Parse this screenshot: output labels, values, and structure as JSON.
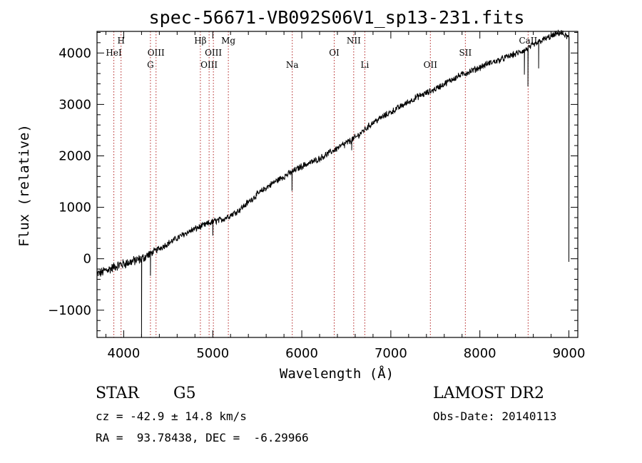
{
  "chart_data": {
    "type": "line",
    "title": "spec-56671-VB092S06V1_sp13-231.fits",
    "xlabel": "Wavelength (Å)",
    "ylabel": "Flux (relative)",
    "xlim": [
      3700,
      9100
    ],
    "ylim": [
      -1530,
      4420
    ],
    "x_ticks": [
      4000,
      5000,
      6000,
      7000,
      8000,
      9000
    ],
    "y_ticks": [
      -1000,
      0,
      1000,
      2000,
      3000,
      4000
    ],
    "grid": false,
    "line_color": "#000000",
    "marker_color": "#b22222",
    "series": [
      {
        "x": [
          3700,
          3750,
          3800,
          3850,
          3900,
          3950,
          4000,
          4100,
          4200,
          4300,
          4400,
          4500,
          4600,
          4700,
          4800,
          4900,
          5000,
          5100,
          5200,
          5300,
          5400,
          5500,
          5600,
          5700,
          5800,
          5900,
          6000,
          6100,
          6200,
          6300,
          6400,
          6500,
          6600,
          6700,
          6800,
          6900,
          7000,
          7100,
          7200,
          7300,
          7400,
          7500,
          7600,
          7700,
          7800,
          7900,
          8000,
          8100,
          8200,
          8300,
          8400,
          8500,
          8600,
          8700,
          8800,
          8900,
          9000
        ],
        "y": [
          -300,
          -270,
          -220,
          -200,
          -150,
          -120,
          -100,
          -50,
          0,
          100,
          200,
          300,
          400,
          500,
          580,
          650,
          720,
          760,
          850,
          950,
          1100,
          1250,
          1380,
          1500,
          1600,
          1700,
          1800,
          1870,
          1950,
          2050,
          2150,
          2250,
          2350,
          2500,
          2650,
          2750,
          2850,
          2950,
          3050,
          3150,
          3220,
          3300,
          3400,
          3500,
          3580,
          3650,
          3720,
          3800,
          3850,
          3920,
          3980,
          4050,
          4150,
          4250,
          4320,
          4400,
          4300
        ],
        "absorption": [
          {
            "x": 4200,
            "y": -1530
          },
          {
            "x": 4300,
            "y": -330
          },
          {
            "x": 5000,
            "y": 450
          },
          {
            "x": 5890,
            "y": 1320
          },
          {
            "x": 6480,
            "y": 2150
          },
          {
            "x": 6560,
            "y": 2110
          },
          {
            "x": 7850,
            "y": 3550
          },
          {
            "x": 8500,
            "y": 3580
          },
          {
            "x": 8540,
            "y": 3350
          },
          {
            "x": 8660,
            "y": 3700
          },
          {
            "x": 9000,
            "y": -60
          }
        ]
      }
    ],
    "lines": [
      {
        "x": 3889,
        "label": "HeI",
        "row": 1
      },
      {
        "x": 3970,
        "label": "H",
        "row": 0
      },
      {
        "x": 4300,
        "label": "G",
        "row": 2
      },
      {
        "x": 4363,
        "label": "OIII",
        "row": 1
      },
      {
        "x": 4861,
        "label": "Hβ",
        "row": 0
      },
      {
        "x": 4959,
        "label": "OIII",
        "row": 2
      },
      {
        "x": 5007,
        "label": "OIII",
        "row": 1
      },
      {
        "x": 5175,
        "label": "Mg",
        "row": 0
      },
      {
        "x": 5893,
        "label": "Na",
        "row": 2
      },
      {
        "x": 6364,
        "label": "OI",
        "row": 1
      },
      {
        "x": 6583,
        "label": "NII",
        "row": 0
      },
      {
        "x": 6708,
        "label": "Li",
        "row": 2
      },
      {
        "x": 7444,
        "label": "OII",
        "row": 2
      },
      {
        "x": 7837,
        "label": "SII",
        "row": 1
      },
      {
        "x": 8542,
        "label": "CaII",
        "row": 0
      }
    ]
  },
  "info": {
    "object_class": "STAR",
    "subclass": "G5",
    "survey": "LAMOST DR2",
    "velocity": "cz = -42.9 ± 14.8 km/s",
    "obs_date": "Obs-Date: 20140113",
    "coords": "RA =  93.78438, DEC =  -6.29966"
  }
}
